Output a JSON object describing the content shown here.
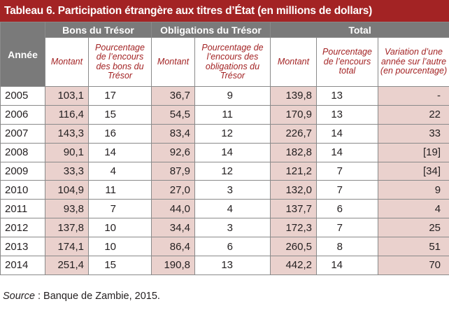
{
  "title": "Tableau 6. Participation étrangère aux titres d’État (en millions de dollars)",
  "headers": {
    "annee": "Année",
    "groups": [
      "Bons du Trésor",
      "Obligations du Trésor",
      "Total"
    ],
    "sub": [
      "Montant",
      "Pourcentage de l’encours des bons du Trésor",
      "Montant",
      "Pourcentage de l’encours des obligations du Trésor",
      "Montant",
      "Pourcentage de l’encours total",
      "Variation d’une année sur l’autre (en pourcentage)"
    ]
  },
  "rows": [
    [
      "2005",
      "103,1",
      "17",
      "36,7",
      "9",
      "139,8",
      "13",
      "-"
    ],
    [
      "2006",
      "116,4",
      "15",
      "54,5",
      "11",
      "170,9",
      "13",
      "22"
    ],
    [
      "2007",
      "143,3",
      "16",
      "83,4",
      "12",
      "226,7",
      "14",
      "33"
    ],
    [
      "2008",
      "90,1",
      "14",
      "92,6",
      "14",
      "182,8",
      "14",
      "[19]"
    ],
    [
      "2009",
      "33,3",
      "4",
      "87,9",
      "12",
      "121,2",
      "7",
      "[34]"
    ],
    [
      "2010",
      "104,9",
      "11",
      "27,0",
      "3",
      "132,0",
      "7",
      "9"
    ],
    [
      "2011",
      "93,8",
      "7",
      "44,0",
      "4",
      "137,7",
      "6",
      "4"
    ],
    [
      "2012",
      "137,8",
      "10",
      "34,4",
      "3",
      "172,3",
      "7",
      "25"
    ],
    [
      "2013",
      "174,1",
      "10",
      "86,4",
      "6",
      "260,5",
      "8",
      "51"
    ],
    [
      "2014",
      "251,4",
      "15",
      "190,8",
      "13",
      "442,2",
      "14",
      "70"
    ]
  ],
  "source": {
    "label": "Source",
    "text": " : Banque de Zambie, 2015."
  }
}
